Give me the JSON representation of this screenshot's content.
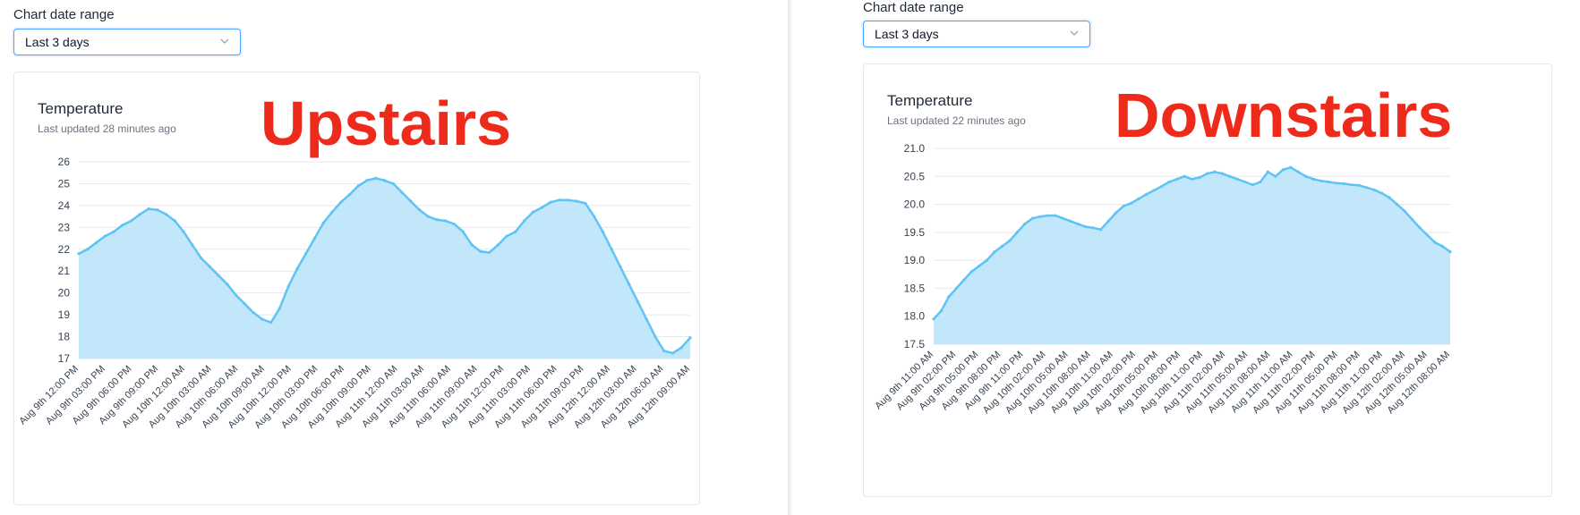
{
  "panels": [
    {
      "range_label": "Chart date range",
      "select_value": "Last 3 days",
      "title": "Temperature",
      "updated": "Last updated 28 minutes ago",
      "overlay": "Upstairs"
    },
    {
      "range_label": "Chart date range",
      "select_value": "Last 3 days",
      "title": "Temperature",
      "updated": "Last updated 22 minutes ago",
      "overlay": "Downstairs"
    }
  ],
  "colors": {
    "line": "#5ec4f4",
    "fill": "#c2e7fb",
    "grid": "#e5e7eb",
    "accent": "#4aa3ff",
    "overlay": "#ee2a1b"
  },
  "icons": {
    "select_chevron": "chevron-down-icon"
  },
  "chart_data": [
    {
      "type": "area",
      "title": "Temperature",
      "ylim": [
        17,
        26
      ],
      "yticks": [
        "17",
        "18",
        "19",
        "20",
        "21",
        "22",
        "23",
        "24",
        "25",
        "26"
      ],
      "grid": true,
      "xticks": [
        "Aug 9th 12:00 PM",
        "Aug 9th 03:00 PM",
        "Aug 9th 06:00 PM",
        "Aug 9th 09:00 PM",
        "Aug 10th 12:00 AM",
        "Aug 10th 03:00 AM",
        "Aug 10th 06:00 AM",
        "Aug 10th 09:00 AM",
        "Aug 10th 12:00 PM",
        "Aug 10th 03:00 PM",
        "Aug 10th 06:00 PM",
        "Aug 10th 09:00 PM",
        "Aug 11th 12:00 AM",
        "Aug 11th 03:00 AM",
        "Aug 11th 06:00 AM",
        "Aug 11th 09:00 AM",
        "Aug 11th 12:00 PM",
        "Aug 11th 03:00 PM",
        "Aug 11th 06:00 PM",
        "Aug 11th 09:00 PM",
        "Aug 12th 12:00 AM",
        "Aug 12th 03:00 AM",
        "Aug 12th 06:00 AM",
        "Aug 12th 09:00 AM"
      ],
      "values": [
        21.8,
        22.0,
        22.3,
        22.6,
        22.8,
        23.1,
        23.3,
        23.6,
        23.85,
        23.8,
        23.6,
        23.3,
        22.8,
        22.2,
        21.6,
        21.2,
        20.8,
        20.4,
        19.9,
        19.5,
        19.1,
        18.8,
        18.65,
        19.3,
        20.3,
        21.1,
        21.8,
        22.5,
        23.2,
        23.7,
        24.15,
        24.5,
        24.9,
        25.15,
        25.25,
        25.15,
        25.0,
        24.6,
        24.2,
        23.8,
        23.5,
        23.35,
        23.3,
        23.15,
        22.8,
        22.2,
        21.9,
        21.85,
        22.2,
        22.6,
        22.8,
        23.3,
        23.7,
        23.9,
        24.15,
        24.25,
        24.25,
        24.2,
        24.1,
        23.5,
        22.8,
        22.0,
        21.2,
        20.4,
        19.6,
        18.8,
        18.0,
        17.35,
        17.25,
        17.5,
        17.95
      ]
    },
    {
      "type": "area",
      "title": "Temperature",
      "ylim": [
        17.5,
        21.0
      ],
      "yticks": [
        "17.5",
        "18.0",
        "18.5",
        "19.0",
        "19.5",
        "20.0",
        "20.5",
        "21.0"
      ],
      "grid": true,
      "xticks": [
        "Aug 9th 11:00 AM",
        "Aug 9th 02:00 PM",
        "Aug 9th 05:00 PM",
        "Aug 9th 08:00 PM",
        "Aug 9th 11:00 PM",
        "Aug 10th 02:00 AM",
        "Aug 10th 05:00 AM",
        "Aug 10th 08:00 AM",
        "Aug 10th 11:00 AM",
        "Aug 10th 02:00 PM",
        "Aug 10th 05:00 PM",
        "Aug 10th 08:00 PM",
        "Aug 10th 11:00 PM",
        "Aug 11th 02:00 AM",
        "Aug 11th 05:00 AM",
        "Aug 11th 08:00 AM",
        "Aug 11th 11:00 AM",
        "Aug 11th 02:00 PM",
        "Aug 11th 05:00 PM",
        "Aug 11th 08:00 PM",
        "Aug 11th 11:00 PM",
        "Aug 12th 02:00 AM",
        "Aug 12th 05:00 AM",
        "Aug 12th 08:00 AM"
      ],
      "values": [
        17.95,
        18.1,
        18.35,
        18.5,
        18.65,
        18.8,
        18.9,
        19.0,
        19.15,
        19.25,
        19.35,
        19.5,
        19.65,
        19.75,
        19.78,
        19.8,
        19.8,
        19.75,
        19.7,
        19.65,
        19.6,
        19.58,
        19.55,
        19.7,
        19.85,
        19.97,
        20.02,
        20.1,
        20.18,
        20.25,
        20.32,
        20.4,
        20.45,
        20.5,
        20.45,
        20.48,
        20.55,
        20.58,
        20.55,
        20.5,
        20.45,
        20.4,
        20.35,
        20.4,
        20.58,
        20.5,
        20.62,
        20.66,
        20.58,
        20.5,
        20.45,
        20.42,
        20.4,
        20.38,
        20.37,
        20.35,
        20.34,
        20.3,
        20.26,
        20.2,
        20.12,
        20.0,
        19.88,
        19.73,
        19.58,
        19.45,
        19.32,
        19.25,
        19.15
      ]
    }
  ]
}
